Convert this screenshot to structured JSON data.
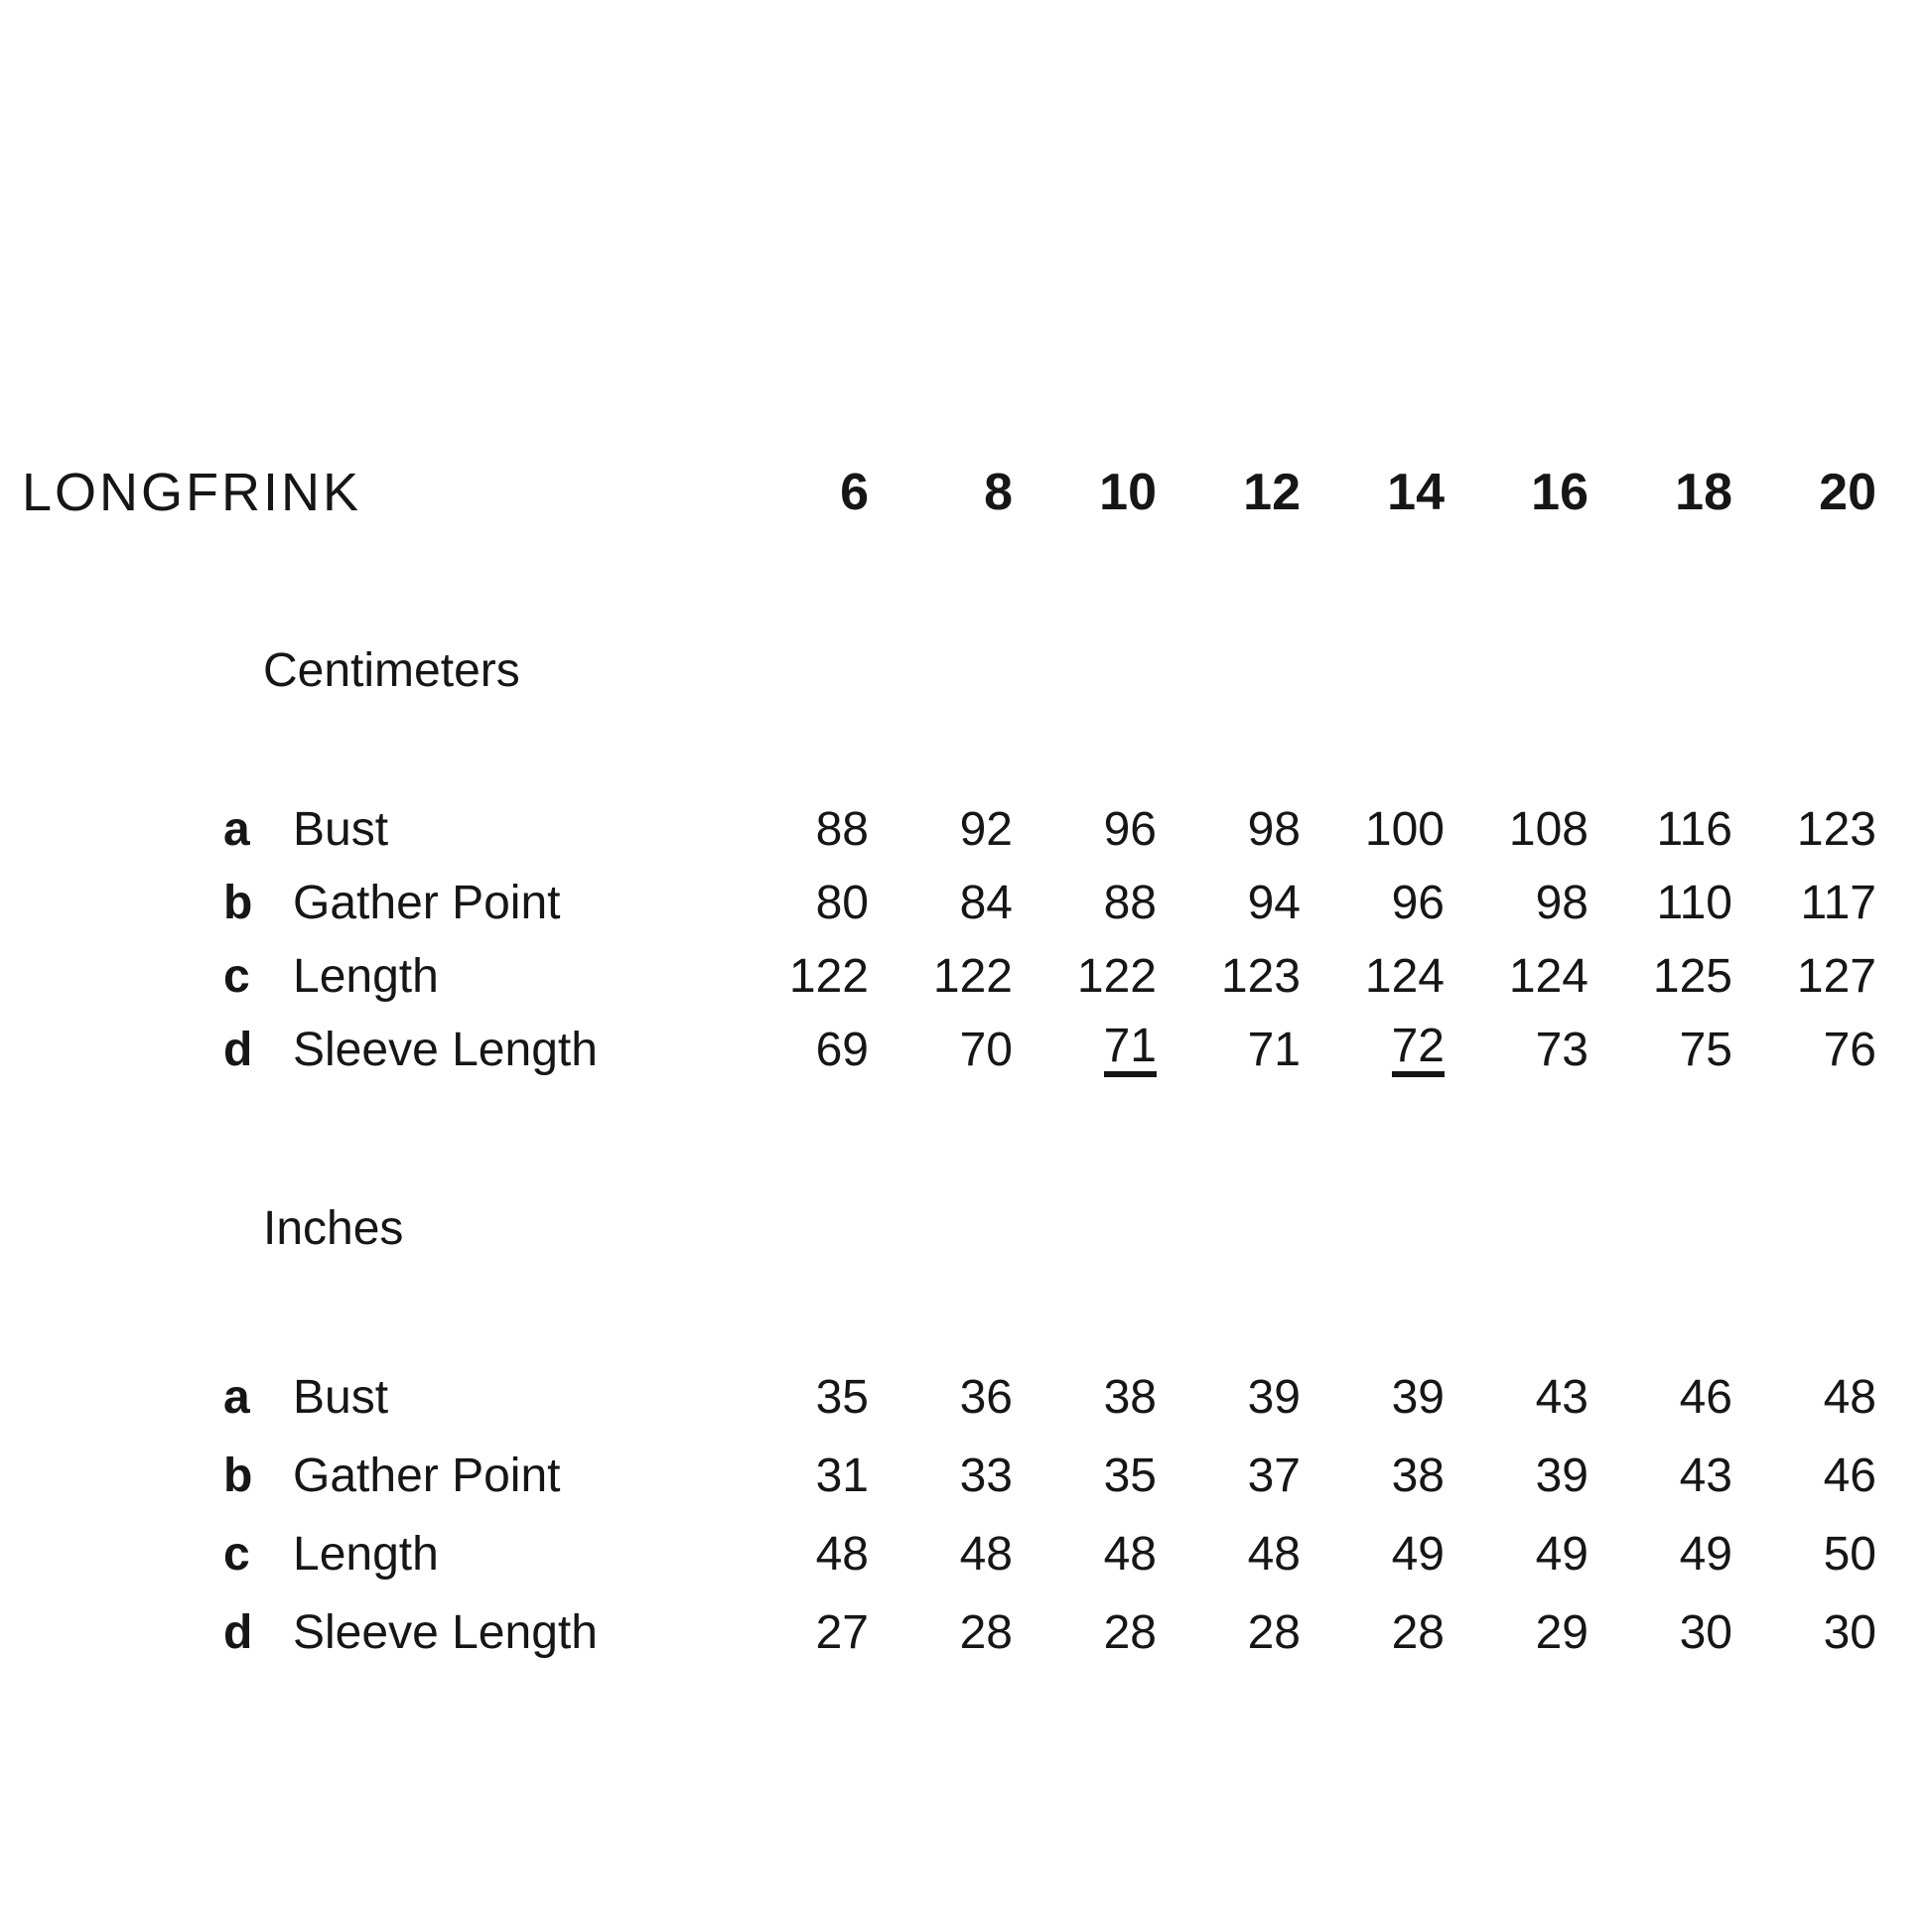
{
  "header": {
    "title": "LONGFRINK",
    "sizes": [
      "6",
      "8",
      "10",
      "12",
      "14",
      "16",
      "18",
      "20"
    ]
  },
  "sections": [
    {
      "heading": "Centimeters",
      "rows": [
        {
          "letter": "a",
          "label": "Bust",
          "values": [
            "88",
            "92",
            "96",
            "98",
            "100",
            "108",
            "116",
            "123"
          ],
          "underlined": []
        },
        {
          "letter": "b",
          "label": "Gather Point",
          "values": [
            "80",
            "84",
            "88",
            "94",
            "96",
            "98",
            "110",
            "117"
          ],
          "underlined": []
        },
        {
          "letter": "c",
          "label": "Length",
          "values": [
            "122",
            "122",
            "122",
            "123",
            "124",
            "124",
            "125",
            "127"
          ],
          "underlined": []
        },
        {
          "letter": "d",
          "label": "Sleeve Length",
          "values": [
            "69",
            "70",
            "71",
            "71",
            "72",
            "73",
            "75",
            "76"
          ],
          "underlined": [
            2,
            4
          ]
        }
      ]
    },
    {
      "heading": "Inches",
      "rows": [
        {
          "letter": "a",
          "label": "Bust",
          "values": [
            "35",
            "36",
            "38",
            "39",
            "39",
            "43",
            "46",
            "48"
          ],
          "underlined": []
        },
        {
          "letter": "b",
          "label": "Gather Point",
          "values": [
            "31",
            "33",
            "35",
            "37",
            "38",
            "39",
            "43",
            "46"
          ],
          "underlined": []
        },
        {
          "letter": "c",
          "label": "Length",
          "values": [
            "48",
            "48",
            "48",
            "48",
            "49",
            "49",
            "49",
            "50"
          ],
          "underlined": []
        },
        {
          "letter": "d",
          "label": "Sleeve Length",
          "values": [
            "27",
            "28",
            "28",
            "28",
            "28",
            "29",
            "30",
            "30"
          ],
          "underlined": []
        }
      ]
    }
  ],
  "colors": {
    "text": "#161616",
    "background": "#ffffff"
  }
}
